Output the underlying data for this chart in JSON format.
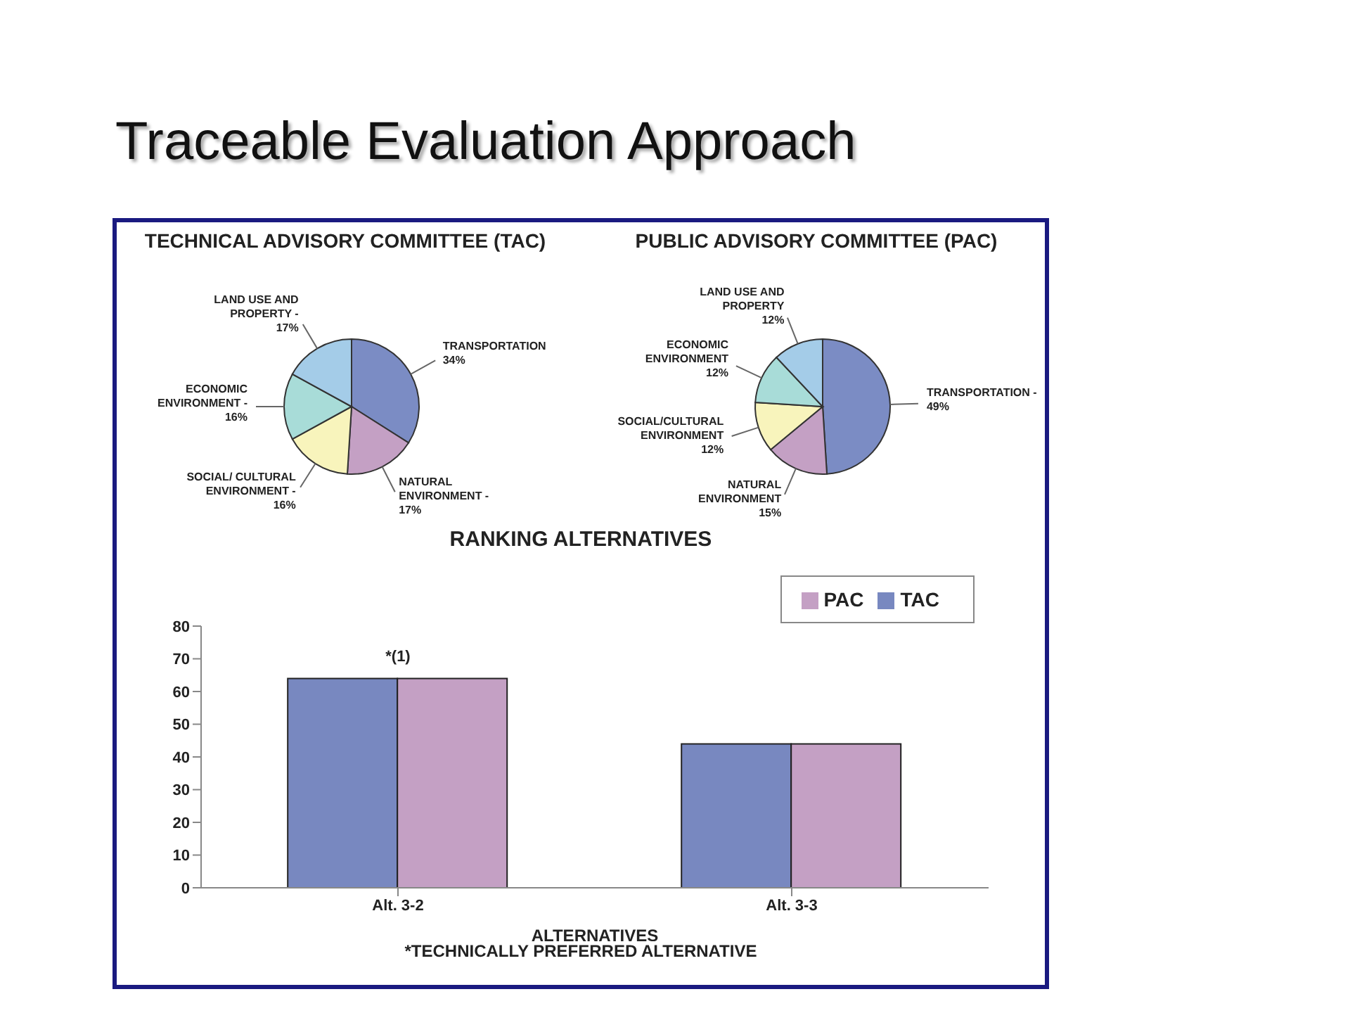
{
  "chart_data": [
    {
      "type": "other",
      "title": "Traceable Evaluation Approach"
    },
    {
      "type": "pie",
      "title": "TECHNICAL ADVISORY COMMITTEE (TAC)",
      "categories": [
        "TRANSPORTATION",
        "NATURAL ENVIRONMENT -",
        "SOCIAL/ CULTURAL ENVIRONMENT -",
        "ECONOMIC ENVIRONMENT -",
        "LAND USE AND PROPERTY -"
      ],
      "values": [
        34,
        17,
        16,
        16,
        17
      ],
      "value_labels": [
        "34%",
        "17%",
        "16%",
        "16%",
        "17%"
      ],
      "colors": [
        "#7b8cc4",
        "#c4a0c4",
        "#f8f4bc",
        "#a8dcd8",
        "#a4cce8"
      ],
      "legend": false
    },
    {
      "type": "pie",
      "title": "PUBLIC ADVISORY COMMITTEE (PAC)",
      "categories": [
        "TRANSPORTATION -",
        "NATURAL ENVIRONMENT",
        "SOCIAL/CULTURAL ENVIRONMENT",
        "ECONOMIC ENVIRONMENT",
        "LAND USE AND PROPERTY"
      ],
      "values": [
        49,
        15,
        12,
        12,
        12
      ],
      "value_labels": [
        "49%",
        "15%",
        "12%",
        "12%",
        "12%"
      ],
      "colors": [
        "#7b8cc4",
        "#c4a0c4",
        "#f8f4bc",
        "#a8dcd8",
        "#a4cce8"
      ],
      "legend": false
    },
    {
      "type": "bar",
      "title": "RANKING ALTERNATIVES",
      "xlabel": "ALTERNATIVES",
      "categories": [
        "Alt. 3-2",
        "Alt. 3-3"
      ],
      "series": [
        {
          "name": "TAC",
          "color": "#7888c0",
          "values": [
            64,
            44
          ]
        },
        {
          "name": "PAC",
          "color": "#c4a0c4",
          "values": [
            64,
            44
          ]
        }
      ],
      "ylim": [
        0,
        80
      ],
      "yticks": [
        0,
        10,
        20,
        30,
        40,
        50,
        60,
        70,
        80
      ],
      "grid": false,
      "legend": "top right",
      "annotations": [
        {
          "text": "*(1)",
          "x": "Alt. 3-2",
          "y": 64
        },
        "*TECHNICALLY PREFERRED ALTERNATIVE"
      ]
    }
  ]
}
